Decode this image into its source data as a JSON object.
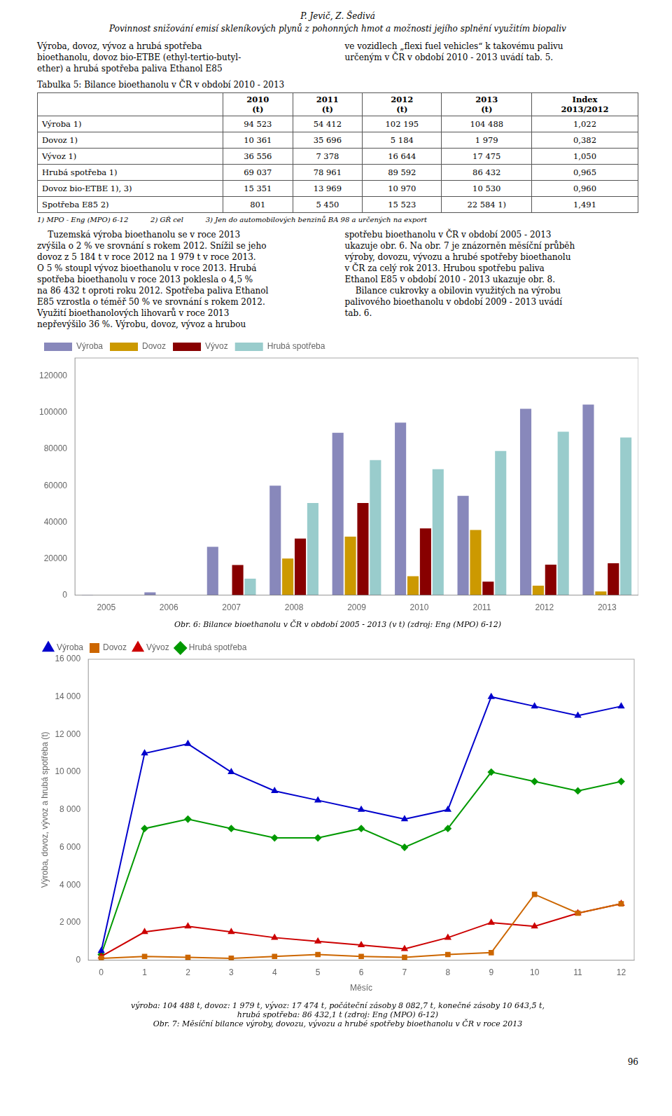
{
  "header": [
    "P. Jevič, Z. Šedivá",
    "Povinnost snižování emisí skleníkových plynů z pohonných hmot a možnosti jejího splnění využitím biopaliv"
  ],
  "paragraphs_1": [
    "Výroba, dovoz, vývoz a hrubá spotřeba\nbioethanolu, dovoz bio-ETBE (ethyl-tertio-butyl-\nether) a hrubá spotřeba paliva Ethanol E85",
    "ve vozidlech „flexi fuel vehicles“ k takovému palivu\nurčeným v ČR v období 2010 - 2013 uvádí tab. 5."
  ],
  "table": {
    "title": "Tabulka 5: Bilance bioethanolu v ČR v období 2010 - 2013",
    "columns": [
      null,
      "2010\n(t)",
      "2011\n(t)",
      "2012\n(t)",
      "2013\n(t)",
      "Index\n2013/2012"
    ],
    "rows": [
      [
        "Výroba 1)",
        "94 523",
        "54 412",
        "102 195",
        "104 488",
        "1,022"
      ],
      [
        "Dovoz 1)",
        "10 361",
        "35 696",
        "5 184",
        "1 979",
        "0,382"
      ],
      [
        "Vývoz 1)",
        "36 556",
        "7 378",
        "16 644",
        "17 475",
        "1,050"
      ],
      [
        "Hrubá spotřeba 1)",
        "69 037",
        "78 961",
        "89 592",
        "86 432",
        "0,965"
      ],
      [
        "Dovoz bio-ETBE 1), 3)",
        "15 351",
        "13 969",
        "10 970",
        "10 530",
        "0,960"
      ],
      [
        "Spotřeba E85 2)",
        "801",
        "5 450",
        "15 523",
        "22 584 1)",
        "1,491"
      ]
    ],
    "footnotes": [
      "1) MPO - Eng (MPO) 6-12",
      "2) GŘ cel",
      "3) Jen do automobilových benzinů BA 98 a určených na export"
    ]
  },
  "paragraphs_2": [
    "    Tuzemská výroba bioethanolu se v roce 2013\nzvýšila o 2 % ve srovnání s rokem 2012. Snížil se jeho\ndovoz z 5 184 t v roce 2012 na 1 979 t v roce 2013.\nO 5 % stoupl vývoz bioethanolu v roce 2013. Hrubá\nspotřeba bioethanolu v roce 2013 poklesla o 4,5 %\nna 86 432 t oproti roku 2012. Spotřeba paliva Ethanol\nE85 vzrostla o téměř 50 % ve srovnání s rokem 2012.\nVyužití bioethanolových lihovarů v roce 2013\nnepřevýšilo 36 %. Výrobu, dovoz, vývoz a hrubou",
    "spotřebu bioethanolu v ČR v období 2005 - 2013\nukazuje obr. 6. Na obr. 7 je znázorněn měsíční průběh\nvýroby, dovozu, vývozu a hrubé spotřeby bioethanolu\nv ČR za celý rok 2013. Hrubou spotřebu paliva\nEthanol E85 v období 2010 - 2013 ukazuje obr. 8.\n    Bilance cukrovky a obilovin využitých na výrobu\npalivového bioethanolu v období 2009 - 2013 uvádí\ntab. 6."
  ],
  "chart_data": [
    {
      "type": "bar",
      "title": "Obr. 6: Bilance bioethanolu v ČR v období 2005 - 2013 (v t) (zdroj: Eng (MPO) 6-12)",
      "categories": [
        "2005",
        "2006",
        "2007",
        "2008",
        "2009",
        "2010",
        "2011",
        "2012",
        "2013"
      ],
      "series": [
        {
          "name": "Výroba",
          "color": "#8888bb",
          "values": [
            200,
            1500,
            26500,
            60000,
            89000,
            94523,
            54412,
            102195,
            104488
          ]
        },
        {
          "name": "Dovoz",
          "color": "#cc9900",
          "values": [
            0,
            0,
            0,
            20000,
            32000,
            10361,
            35696,
            5184,
            1979
          ]
        },
        {
          "name": "Vývoz",
          "color": "#880000",
          "values": [
            0,
            0,
            16500,
            31000,
            50500,
            36556,
            7378,
            16644,
            17475
          ]
        },
        {
          "name": "Hrubá spotřeba",
          "color": "#99cccc",
          "values": [
            0,
            0,
            9000,
            50500,
            74000,
            69037,
            78961,
            89592,
            86432
          ]
        }
      ],
      "ylim": [
        0,
        130000
      ],
      "yticks": [
        0,
        20000,
        40000,
        60000,
        80000,
        100000,
        120000
      ],
      "grid": false,
      "legend": "upper left"
    },
    {
      "type": "line",
      "title": [
        "výroba: 104 488 t, dovoz: 1 979 t, vývoz: 17 474 t, počáteční zásoby 8 082,7 t, konečné zásoby 10 643,5 t,",
        "hrubá spotřeba: 86 432,1 t (zdroj: Eng (MPO) 6-12)",
        "Obr. 7: Měsíční bilance výroby, dovozu, vývozu a hrubé spotřeby bioethanolu v ČR v roce 2013"
      ],
      "xlabel": "Měsíc",
      "ylabel": "Výroba, dovoz, vývoz a hrubá spotřeba (t)",
      "x": [
        0,
        1,
        2,
        3,
        4,
        5,
        6,
        7,
        8,
        9,
        10,
        11,
        12
      ],
      "series": [
        {
          "name": "Výroba",
          "color": "#0000cc",
          "marker": "triangle",
          "values": [
            500,
            11000,
            11500,
            10000,
            9000,
            8500,
            8000,
            7500,
            8000,
            14000,
            13500,
            13000,
            13500
          ]
        },
        {
          "name": "Dovoz",
          "color": "#cc6600",
          "marker": "square",
          "values": [
            100,
            200,
            150,
            100,
            200,
            300,
            200,
            150,
            300,
            400,
            3500,
            2500,
            3000
          ]
        },
        {
          "name": "Vývoz",
          "color": "#cc0000",
          "marker": "triangle",
          "values": [
            200,
            1500,
            1800,
            1500,
            1200,
            1000,
            800,
            600,
            1200,
            2000,
            1800,
            2500,
            3000
          ]
        },
        {
          "name": "Hrubá spotřeba",
          "color": "#009900",
          "marker": "diamond",
          "values": [
            300,
            7000,
            7500,
            7000,
            6500,
            6500,
            7000,
            6000,
            7000,
            10000,
            9500,
            9000,
            9500
          ]
        }
      ],
      "xlim": [
        -0.3,
        12.3
      ],
      "xticks": [
        0,
        1,
        2,
        3,
        4,
        5,
        6,
        7,
        8,
        9,
        10,
        11,
        12
      ],
      "ylim": [
        0,
        16000
      ],
      "yticks": [
        0,
        {
          "value": 2000,
          "label": "2 000"
        },
        {
          "value": 4000,
          "label": "4 000"
        },
        {
          "value": 6000,
          "label": "6 000"
        },
        {
          "value": 8000,
          "label": "8 000"
        },
        {
          "value": 10000,
          "label": "10 000"
        },
        {
          "value": 12000,
          "label": "12 000"
        },
        {
          "value": 14000,
          "label": "14 000"
        },
        {
          "value": 16000,
          "label": "16 000"
        }
      ],
      "grid": false,
      "legend": "upper left"
    }
  ],
  "page_number": "96"
}
